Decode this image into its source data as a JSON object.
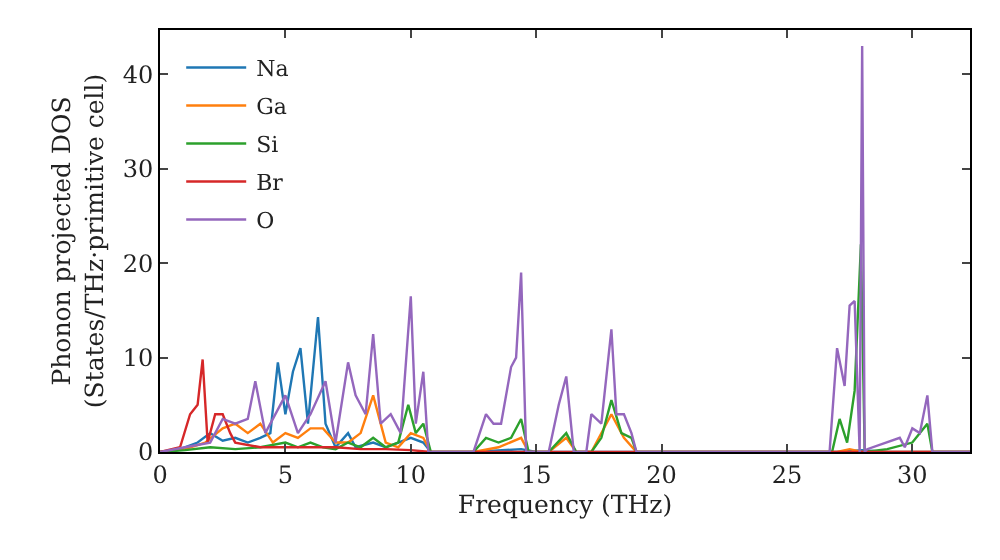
{
  "chart_data": {
    "type": "line",
    "xlabel": "Frequency (THz)",
    "ylabel": "Phonon projected DOS\n(States/THz·primitive cell)",
    "xlim": [
      0,
      32.3
    ],
    "ylim": [
      0,
      44.7
    ],
    "xticks": [
      0,
      5,
      10,
      15,
      20,
      25,
      30
    ],
    "yticks": [
      0,
      10,
      20,
      30,
      40
    ],
    "legend": "top left",
    "series": [
      {
        "name": "Na",
        "color": "#1f77b4",
        "x": [
          0,
          0.8,
          1.5,
          2,
          2.5,
          3,
          3.5,
          4,
          4.4,
          4.7,
          5,
          5.3,
          5.6,
          5.9,
          6.3,
          6.6,
          7,
          7.5,
          7.8,
          8.5,
          9,
          9.5,
          10,
          10.5,
          10.8,
          12.5,
          14.4,
          15,
          27,
          28,
          29,
          30.8,
          32.3
        ],
        "values": [
          0,
          0.3,
          1,
          2,
          1.2,
          1.5,
          1,
          1.5,
          2,
          9.5,
          4,
          8.5,
          11,
          3,
          14.3,
          3,
          0.5,
          2,
          0.5,
          1,
          0.5,
          1,
          1.5,
          1,
          0,
          0,
          0.3,
          0,
          0,
          0.2,
          0,
          0,
          0
        ]
      },
      {
        "name": "Ga",
        "color": "#ff7f0e",
        "x": [
          0,
          1,
          1.8,
          2.5,
          3,
          3.5,
          4,
          4.5,
          5,
          5.5,
          6,
          6.5,
          7,
          7.5,
          8,
          8.5,
          9,
          9.5,
          10,
          10.5,
          10.8,
          12.5,
          13.5,
          14.4,
          14.7,
          15.5,
          16.2,
          16.6,
          17.2,
          18,
          18.5,
          19,
          27,
          27.5,
          28,
          30.8,
          32.3
        ],
        "values": [
          0,
          0.3,
          1,
          2.5,
          3,
          2,
          3,
          1,
          2,
          1.5,
          2.5,
          2.5,
          1,
          1,
          2,
          6,
          1,
          0.5,
          2,
          1.5,
          0,
          0,
          0.5,
          1.5,
          0,
          0,
          1.5,
          0,
          0,
          4,
          1.5,
          0,
          0,
          0.3,
          0,
          0,
          0
        ]
      },
      {
        "name": "Si",
        "color": "#2ca02c",
        "x": [
          0,
          1,
          2,
          3,
          4,
          5,
          5.5,
          6,
          6.5,
          7,
          7.5,
          8,
          8.5,
          9,
          9.5,
          9.9,
          10.2,
          10.5,
          10.8,
          12.5,
          13,
          13.5,
          14,
          14.4,
          14.7,
          15.5,
          16.2,
          16.6,
          17.2,
          17.6,
          18,
          18.4,
          18.8,
          19,
          26.8,
          27.1,
          27.4,
          27.7,
          27.95,
          28.1,
          29,
          30,
          30.6,
          30.8,
          32.3
        ],
        "values": [
          0,
          0.2,
          0.5,
          0.3,
          0.5,
          1,
          0.5,
          1,
          0.5,
          0.3,
          1,
          0.5,
          1.5,
          0.5,
          1,
          5,
          2,
          3,
          0,
          0,
          1.5,
          1,
          1.5,
          3.5,
          0,
          0,
          2,
          0,
          0,
          1.5,
          5.5,
          2,
          1.5,
          0,
          0,
          3.5,
          1,
          6.5,
          22,
          0,
          0.3,
          1,
          3,
          0,
          0
        ]
      },
      {
        "name": "Br",
        "color": "#d62728",
        "x": [
          0,
          0.8,
          1.2,
          1.5,
          1.7,
          1.9,
          2.2,
          2.5,
          2.8,
          3,
          4,
          5,
          6,
          7,
          8,
          9,
          10,
          10.8,
          32.3
        ],
        "values": [
          0,
          0.5,
          4,
          5,
          9.8,
          1,
          4,
          4,
          2,
          1,
          0.5,
          0.5,
          0.5,
          0.5,
          0.3,
          0.3,
          0.2,
          0,
          0
        ]
      },
      {
        "name": "O",
        "color": "#9467bd",
        "x": [
          0,
          1,
          2,
          2.5,
          3,
          3.5,
          3.8,
          4.2,
          5,
          5.5,
          6,
          6.6,
          7,
          7.5,
          7.8,
          8.2,
          8.5,
          8.8,
          9.2,
          9.6,
          10,
          10.2,
          10.5,
          10.7,
          12.5,
          13,
          13.3,
          13.6,
          14,
          14.2,
          14.4,
          14.6,
          15.5,
          15.9,
          16.2,
          16.5,
          17,
          17.2,
          17.6,
          18,
          18.2,
          18.5,
          18.8,
          19,
          26.7,
          27,
          27.3,
          27.5,
          27.7,
          27.9,
          28,
          28.1,
          28.2,
          29.5,
          29.7,
          30,
          30.3,
          30.6,
          30.8,
          32.3
        ],
        "values": [
          0,
          0.5,
          1,
          3.5,
          3,
          3.5,
          7.5,
          2,
          6,
          2,
          4,
          7.5,
          1,
          9.5,
          6,
          4,
          12.5,
          3,
          4,
          2,
          16.5,
          3,
          8.5,
          0,
          0,
          4,
          3,
          3,
          9,
          10,
          19,
          0,
          0,
          5,
          8,
          0,
          0,
          4,
          3,
          13,
          4,
          4,
          2,
          0,
          0,
          11,
          7,
          15.5,
          16,
          0,
          43,
          0,
          0.3,
          1.5,
          0.5,
          2.5,
          2,
          6,
          0,
          0
        ]
      }
    ]
  }
}
